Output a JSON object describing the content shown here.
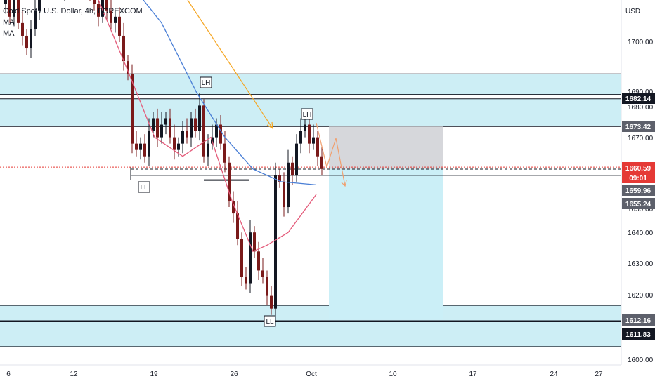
{
  "symbol": {
    "title": "Gold Spot / U.S. Dollar, 4h, FOREXCOM",
    "indicators": [
      "MA",
      "MA"
    ]
  },
  "currency": "USD",
  "colors": {
    "up": "#131722",
    "down": "#7a1a1a",
    "ma_fast": "#e45b7a",
    "ma_slow": "#4a7fd6",
    "zone": "#cdeef5",
    "stop_box": "#d6d7db",
    "target_box": "#cbeff7",
    "arrow_big": "#f5a623",
    "arrow_small": "#f0a070",
    "current_price": "#e53935"
  },
  "price_axis": {
    "ticks": [
      "1700.00",
      "1690.00",
      "1680.00",
      "1670.00",
      "1650.00",
      "1640.00",
      "1630.00",
      "1620.00",
      "1600.00"
    ],
    "labels": [
      {
        "text": "1682.14",
        "type": "dark"
      },
      {
        "text": "1673.42",
        "type": "gray"
      },
      {
        "text": "1660.59",
        "type": "red"
      },
      {
        "text": "09:01",
        "type": "red"
      },
      {
        "text": "1659.96",
        "type": "gray"
      },
      {
        "text": "1655.24",
        "type": "gray"
      },
      {
        "text": "1612.16",
        "type": "gray"
      },
      {
        "text": "1611.83",
        "type": "dark"
      }
    ]
  },
  "time_axis": {
    "labels": [
      "6",
      "12",
      "19",
      "26",
      "Oct",
      "10",
      "17",
      "24",
      "27"
    ]
  },
  "annotations": [
    "LH",
    "LH",
    "LL",
    "LL"
  ],
  "chart_data": {
    "type": "candlestick",
    "price_range": [
      1597,
      1722
    ],
    "zones": [
      [
        1683.5,
        1690
      ],
      [
        1673.4,
        1682.14
      ],
      [
        1604,
        1611.83
      ],
      [
        1612.16,
        1617
      ]
    ],
    "horizontal_lines": [
      1660.59,
      1659.96,
      1655.24
    ],
    "trade_box": {
      "entry": 1660.0,
      "stop": 1673.4,
      "target": 1612.5
    }
  }
}
